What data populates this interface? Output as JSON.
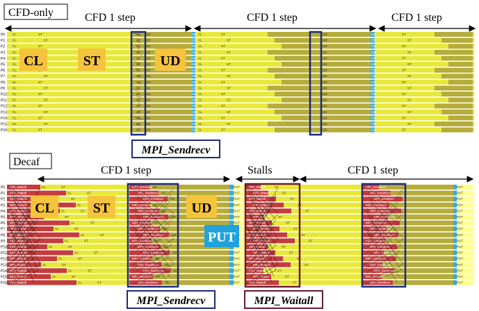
{
  "top": {
    "title": "CFD-only",
    "steps": [
      "CFD 1 step",
      "CFD 1 step",
      "CFD 1 step"
    ],
    "rank_labels": [
      "P0",
      "P1",
      "P2",
      "P3",
      "P4",
      "P5",
      "P6",
      "P7",
      "P8",
      "P9",
      "P10",
      "P11",
      "P12",
      "P13",
      "P14",
      "P15",
      "P16"
    ],
    "phase_labels": {
      "cl": "CL",
      "st": "ST",
      "ud": "UD"
    },
    "callout": "MPI_Sendrecv",
    "tiny": {
      "cl": "CL",
      "st": "ST",
      "ud": "UD",
      "gb": "GB",
      "se": "SE"
    }
  },
  "bottom": {
    "title": "Decaf",
    "steps": [
      "CFD 1 step",
      "Stalls",
      "CFD 1 step"
    ],
    "rank_labels": [
      "P0",
      "P1",
      "P2",
      "P3",
      "P4",
      "P5",
      "P6",
      "P7",
      "P8",
      "P9",
      "P10",
      "P11",
      "P12",
      "P13",
      "P14",
      "P15",
      "P16"
    ],
    "phase_labels": {
      "cl": "CL",
      "st": "ST",
      "ud": "UD",
      "put": "PUT"
    },
    "callouts": {
      "sendrecv": "MPI_Sendrecv",
      "waitall": "MPI_Waitall"
    },
    "tiny": {
      "cl": "CL",
      "st": "ST",
      "ud": "UD",
      "put": "PUT",
      "sendrecv": "MPI_Sendrecv",
      "waitall": "MPI_Waitall"
    }
  },
  "colors": {
    "cl_st": "#e8e83a",
    "ud": "#b5ac3c",
    "gb": "#3ba7dd",
    "mpi": "#c63c3c",
    "put_bg": "#ffff90",
    "box_blue": "#1b2a7a",
    "box_maroon": "#6b1a2e",
    "label_bg": "#f6c33d",
    "put_label_bg": "#21a2dc"
  }
}
